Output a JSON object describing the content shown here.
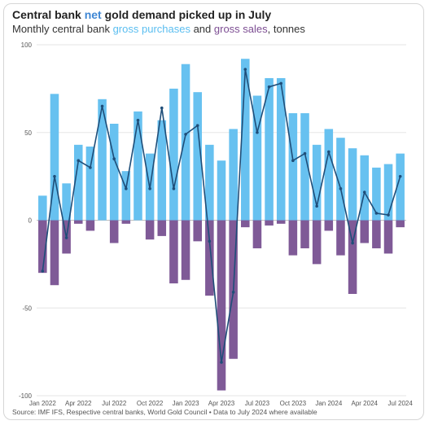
{
  "header": {
    "title_part1": "Central bank ",
    "title_highlight": "net",
    "title_part2": " gold demand picked up in July",
    "subtitle_part1": "Monthly central bank ",
    "subtitle_purchases": "gross purchases",
    "subtitle_and": " and ",
    "subtitle_sales": "gross sales",
    "subtitle_part2": ", tonnes"
  },
  "colors": {
    "purchases": "#67c1f0",
    "sales": "#7f5a97",
    "net_line": "#1f4e79",
    "title_highlight": "#3f87d4"
  },
  "footer": {
    "source": "Source: IMF IFS, Respective central banks, World Gold Council • Data to July 2024 where available"
  },
  "chart_data": {
    "type": "bar",
    "ylim": [
      -100,
      100
    ],
    "yticks": [
      -100,
      -50,
      0,
      50,
      100
    ],
    "grid": true,
    "categories": [
      "Jan 2022",
      "Feb 2022",
      "Mar 2022",
      "Apr 2022",
      "May 2022",
      "Jun 2022",
      "Jul 2022",
      "Aug 2022",
      "Sep 2022",
      "Oct 2022",
      "Nov 2022",
      "Dec 2022",
      "Jan 2023",
      "Feb 2023",
      "Mar 2023",
      "Apr 2023",
      "May 2023",
      "Jun 2023",
      "Jul 2023",
      "Aug 2023",
      "Sep 2023",
      "Oct 2023",
      "Nov 2023",
      "Dec 2023",
      "Jan 2024",
      "Feb 2024",
      "Mar 2024",
      "Apr 2024",
      "May 2024",
      "Jun 2024",
      "Jul 2024"
    ],
    "xtick_labels": [
      {
        "index": 0,
        "label": "Jan 2022"
      },
      {
        "index": 3,
        "label": "Apr 2022"
      },
      {
        "index": 6,
        "label": "Jul 2022"
      },
      {
        "index": 9,
        "label": "Oct 2022"
      },
      {
        "index": 12,
        "label": "Jan 2023"
      },
      {
        "index": 15,
        "label": "Apr 2023"
      },
      {
        "index": 18,
        "label": "Jul 2023"
      },
      {
        "index": 21,
        "label": "Oct 2023"
      },
      {
        "index": 24,
        "label": "Jan 2024"
      },
      {
        "index": 27,
        "label": "Apr 2024"
      },
      {
        "index": 30,
        "label": "Jul 2024"
      }
    ],
    "series": [
      {
        "key": "purchases",
        "type": "bar",
        "values": [
          14,
          72,
          21,
          43,
          42,
          69,
          55,
          28,
          62,
          38,
          57,
          75,
          89,
          73,
          43,
          34,
          52,
          92,
          71,
          81,
          81,
          61,
          61,
          43,
          52,
          47,
          41,
          37,
          30,
          32,
          38
        ]
      },
      {
        "key": "sales",
        "type": "bar",
        "values": [
          -30,
          -37,
          -19,
          -2,
          -6,
          0,
          -13,
          -2,
          0,
          -11,
          -9,
          -36,
          -34,
          -12,
          -43,
          -97,
          -79,
          -4,
          -16,
          -3,
          -2,
          -20,
          -16,
          -25,
          -6,
          -20,
          -42,
          -13,
          -16,
          -19,
          -4
        ]
      },
      {
        "key": "net",
        "type": "line",
        "values": [
          -29,
          25,
          -10,
          34,
          30,
          65,
          35,
          18,
          57,
          18,
          64,
          18,
          49,
          54,
          -12,
          -81,
          -41,
          86,
          50,
          76,
          78,
          34,
          38,
          8,
          39,
          18,
          -13,
          16,
          4,
          3,
          25
        ]
      }
    ]
  }
}
